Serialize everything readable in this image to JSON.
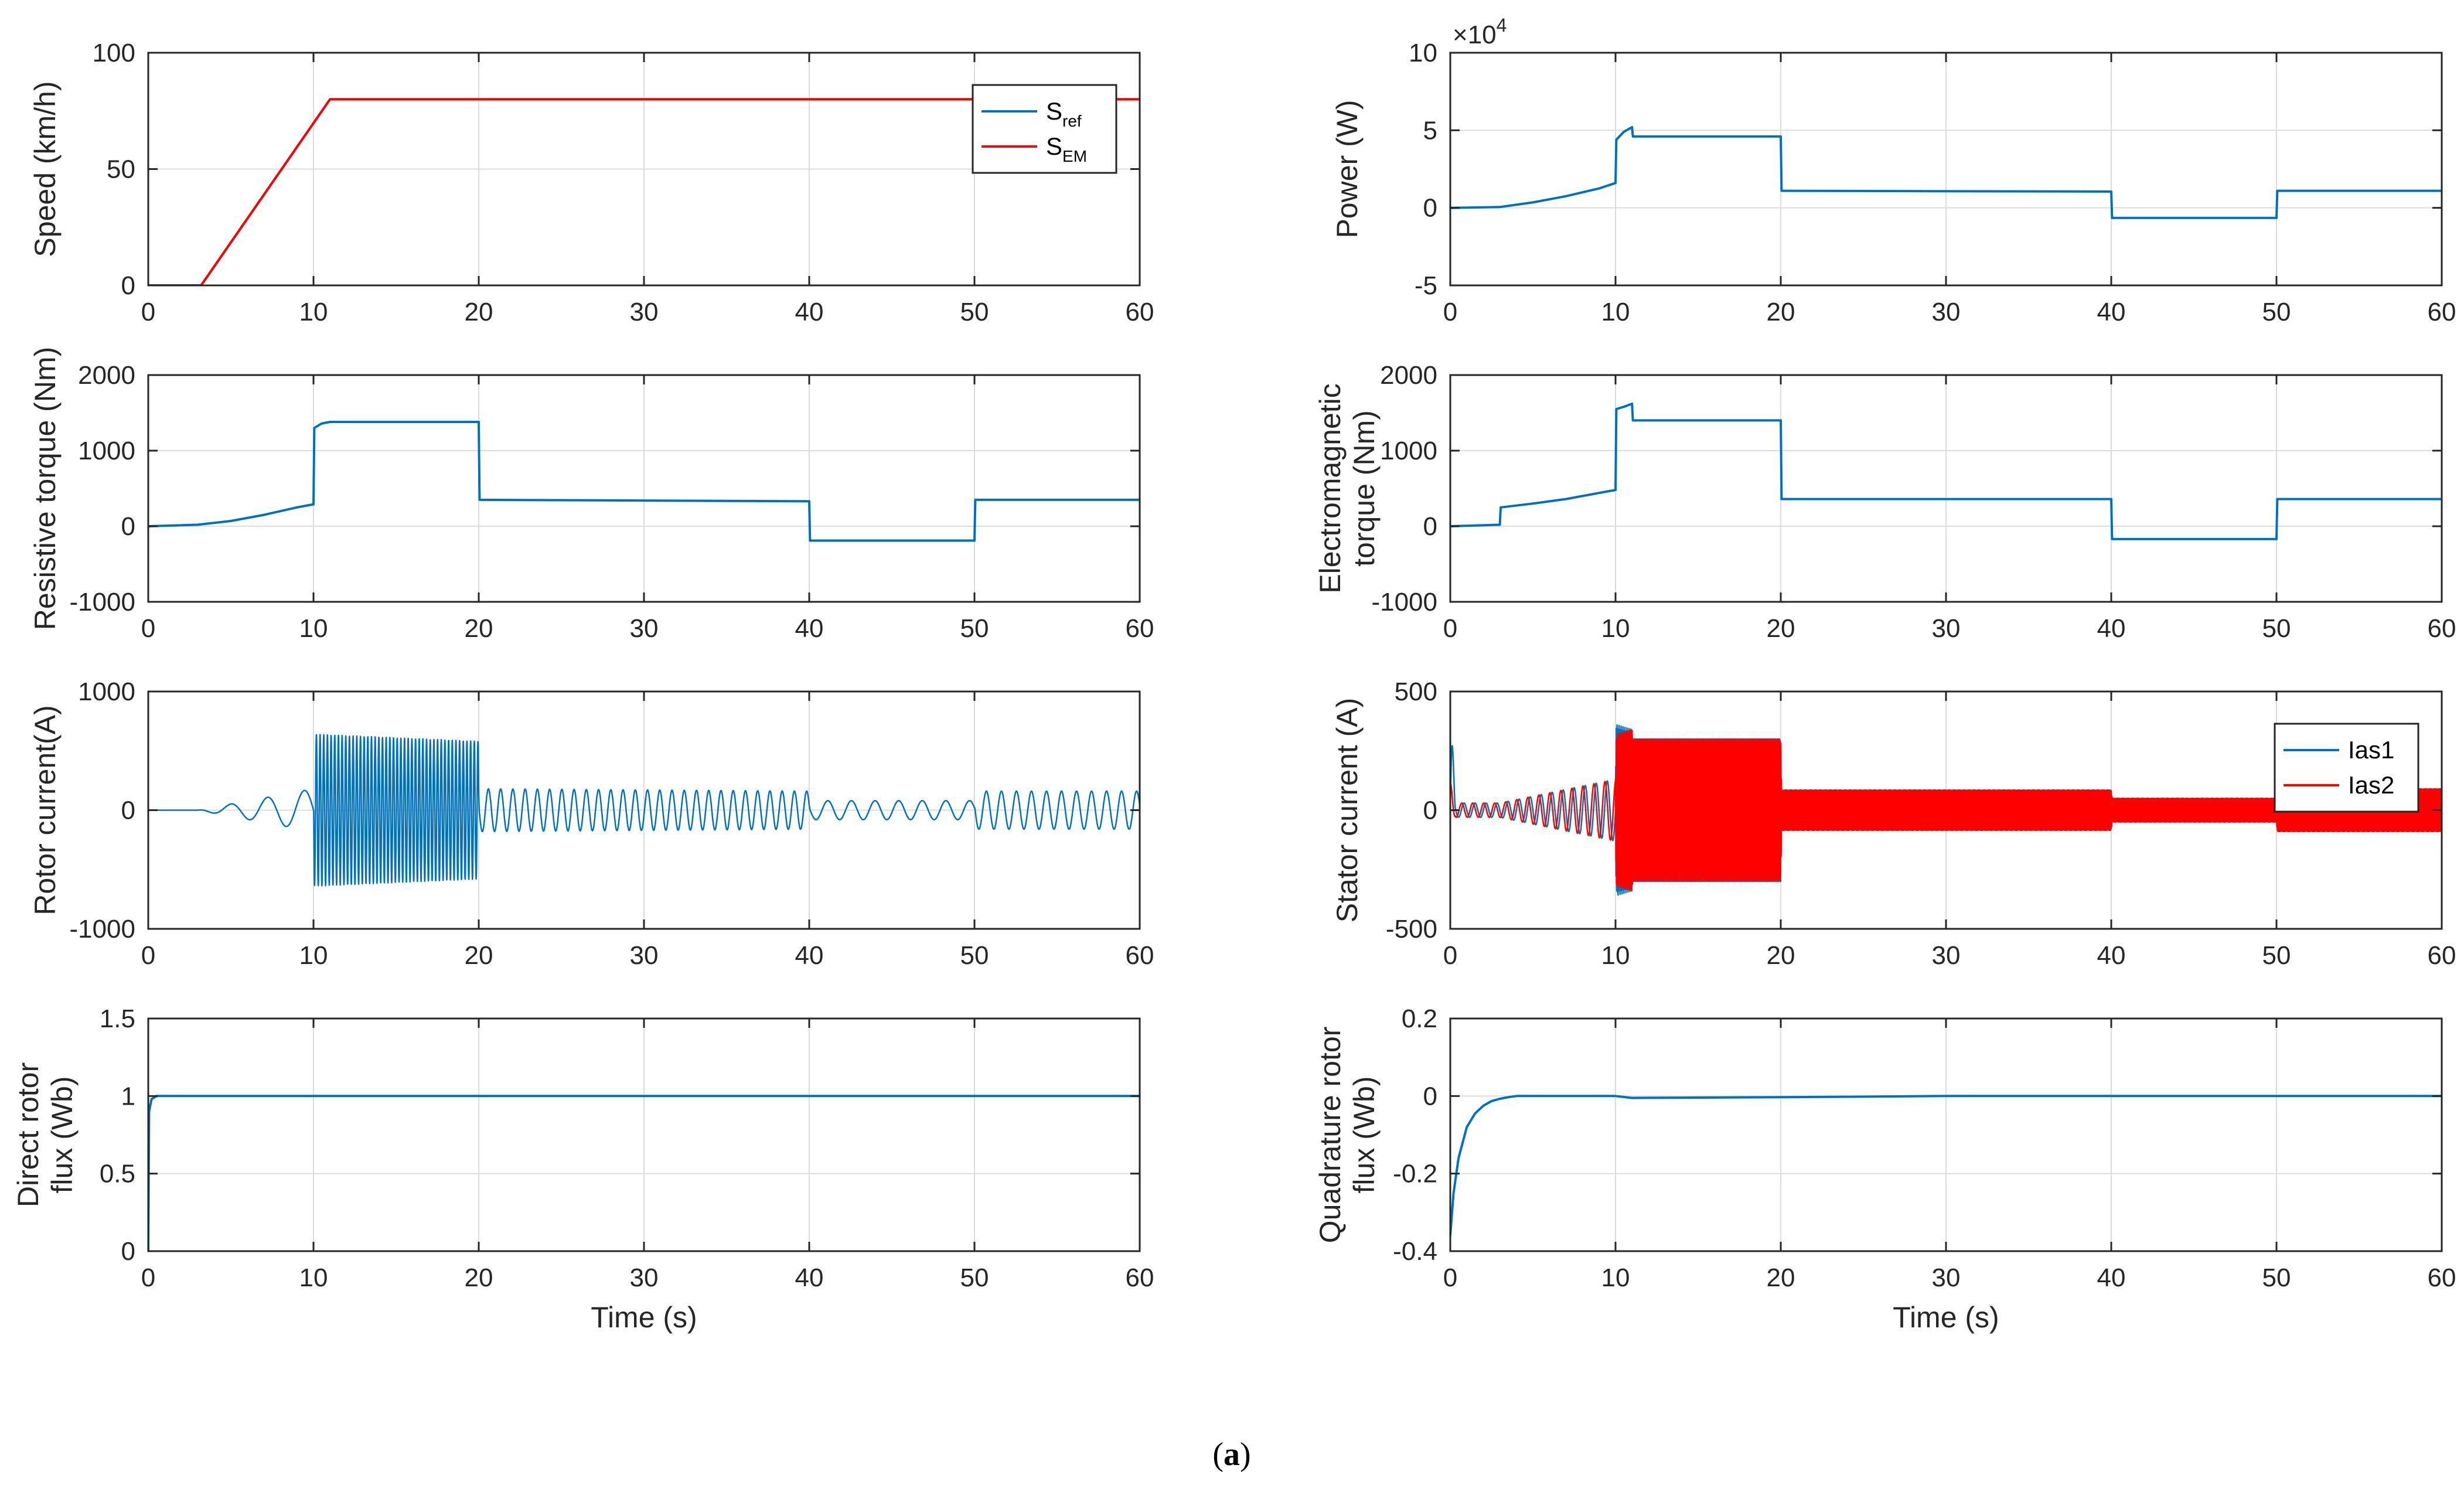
{
  "caption": {
    "open": "(",
    "letter": "a",
    "close": ")"
  },
  "colors": {
    "blue": "#0072bd",
    "red": "#ff0000",
    "grid": "#dcdcdc",
    "axis": "#262626"
  },
  "chart_data": [
    {
      "id": "speed",
      "type": "line",
      "ylabel": "Speed (km/h)",
      "xlabel": "",
      "xlim": [
        0,
        60
      ],
      "ylim": [
        0,
        100
      ],
      "xticks": [
        "0",
        "10",
        "20",
        "30",
        "40",
        "50",
        "60"
      ],
      "yticks": [
        "0",
        "50",
        "100"
      ],
      "grid": true,
      "legend": "top-right",
      "legend_entries": [
        {
          "main": "S",
          "sub": "ref",
          "color": "#0072bd"
        },
        {
          "main": "S",
          "sub": "EM",
          "color": "#ff0000"
        }
      ],
      "series": [
        {
          "name": "Sref",
          "color": "#0072bd",
          "x": [
            0,
            3.2,
            11,
            60
          ],
          "y": [
            0,
            0,
            80,
            80
          ]
        },
        {
          "name": "SEM",
          "color": "#ff0000",
          "x": [
            0,
            3.2,
            11,
            60
          ],
          "y": [
            0,
            0,
            80,
            80
          ]
        }
      ]
    },
    {
      "id": "power",
      "type": "line",
      "ylabel": "Power (W)",
      "xlabel": "",
      "exponent": "×10",
      "exponent_power": "4",
      "xlim": [
        0,
        60
      ],
      "ylim": [
        -5,
        10
      ],
      "xticks": [
        "0",
        "10",
        "20",
        "30",
        "40",
        "50",
        "60"
      ],
      "yticks": [
        "-5",
        "0",
        "5",
        "10"
      ],
      "grid": true,
      "series": [
        {
          "color": "#0072bd",
          "x": [
            0,
            3,
            5,
            7,
            9,
            10,
            10.05,
            10.5,
            11,
            11.05,
            20,
            20.05,
            40,
            40.05,
            50,
            50.05,
            60
          ],
          "y": [
            0,
            0.05,
            0.35,
            0.75,
            1.25,
            1.6,
            4.4,
            4.9,
            5.2,
            4.6,
            4.6,
            1.1,
            1.05,
            -0.65,
            -0.65,
            1.1,
            1.1
          ]
        }
      ]
    },
    {
      "id": "resistive",
      "type": "line",
      "ylabel": "Resistive torque (Nm)",
      "xlabel": "",
      "xlim": [
        0,
        60
      ],
      "ylim": [
        -1000,
        2000
      ],
      "xticks": [
        "0",
        "10",
        "20",
        "30",
        "40",
        "50",
        "60"
      ],
      "yticks": [
        "-1000",
        "0",
        "1000",
        "2000"
      ],
      "grid": true,
      "series": [
        {
          "color": "#0072bd",
          "x": [
            0,
            3,
            5,
            7,
            9,
            10,
            10.05,
            10.5,
            11,
            20,
            20.05,
            40,
            40.05,
            50,
            50.05,
            60
          ],
          "y": [
            0,
            20,
            70,
            150,
            250,
            290,
            1300,
            1360,
            1380,
            1380,
            350,
            330,
            -190,
            -190,
            350,
            350
          ]
        }
      ]
    },
    {
      "id": "em_torque",
      "type": "line",
      "ylabel": [
        "Electromagnetic",
        "torque (Nm)"
      ],
      "xlabel": "",
      "xlim": [
        0,
        60
      ],
      "ylim": [
        -1000,
        2000
      ],
      "xticks": [
        "0",
        "10",
        "20",
        "30",
        "40",
        "50",
        "60"
      ],
      "yticks": [
        "-1000",
        "0",
        "1000",
        "2000"
      ],
      "grid": true,
      "series": [
        {
          "color": "#0072bd",
          "x": [
            0,
            3,
            3.05,
            5,
            7,
            9,
            10,
            10.05,
            10.5,
            11,
            11.05,
            20,
            20.05,
            40,
            40.05,
            50,
            50.05,
            60
          ],
          "y": [
            0,
            20,
            250,
            300,
            360,
            440,
            480,
            1550,
            1580,
            1620,
            1400,
            1400,
            360,
            360,
            -170,
            -170,
            360,
            360
          ]
        }
      ]
    },
    {
      "id": "rotor_current",
      "type": "line",
      "ylabel": "Rotor current(A)",
      "xlabel": "",
      "xlim": [
        0,
        60
      ],
      "ylim": [
        -1000,
        1000
      ],
      "xticks": [
        "0",
        "10",
        "20",
        "30",
        "40",
        "50",
        "60"
      ],
      "yticks": [
        "-1000",
        "0",
        "1000"
      ],
      "grid": true,
      "series": [
        {
          "color": "#0072bd",
          "envelope": [
            [
              0,
              0
            ],
            [
              3,
              0
            ],
            [
              10,
              180
            ],
            [
              10.05,
              640
            ],
            [
              20,
              580
            ],
            [
              20.05,
              180
            ],
            [
              40,
              160
            ],
            [
              40.05,
              80
            ],
            [
              50,
              80
            ],
            [
              50.05,
              160
            ],
            [
              60,
              160
            ]
          ]
        }
      ]
    },
    {
      "id": "stator_current",
      "type": "line",
      "ylabel": "Stator current (A)",
      "xlabel": "",
      "xlim": [
        0,
        60
      ],
      "ylim": [
        -500,
        500
      ],
      "xticks": [
        "0",
        "10",
        "20",
        "30",
        "40",
        "50",
        "60"
      ],
      "yticks": [
        "-500",
        "0",
        "500"
      ],
      "grid": true,
      "legend": "top-right",
      "legend_entries": [
        {
          "main": "Ias1",
          "color": "#0072bd"
        },
        {
          "main": "Ias2",
          "color": "#ff0000"
        }
      ],
      "series": [
        {
          "name": "Ias1",
          "color": "#0072bd",
          "envelope": [
            [
              0,
              480
            ],
            [
              0.3,
              30
            ],
            [
              3,
              30
            ],
            [
              10,
              130
            ],
            [
              10.05,
              360
            ],
            [
              11,
              340
            ],
            [
              11.05,
              300
            ],
            [
              20,
              300
            ],
            [
              20.05,
              85
            ],
            [
              40,
              85
            ],
            [
              40.05,
              50
            ],
            [
              50,
              50
            ],
            [
              50.05,
              90
            ],
            [
              60,
              90
            ]
          ]
        },
        {
          "name": "Ias2",
          "color": "#ff0000",
          "envelope": [
            [
              0,
              120
            ],
            [
              0.3,
              30
            ],
            [
              3,
              30
            ],
            [
              10,
              130
            ],
            [
              10.05,
              320
            ],
            [
              11,
              340
            ],
            [
              11.05,
              300
            ],
            [
              20,
              300
            ],
            [
              20.05,
              85
            ],
            [
              40,
              85
            ],
            [
              40.05,
              50
            ],
            [
              50,
              50
            ],
            [
              50.05,
              90
            ],
            [
              60,
              90
            ]
          ]
        }
      ]
    },
    {
      "id": "direct_flux",
      "type": "line",
      "ylabel": [
        "Direct rotor",
        "flux (Wb)"
      ],
      "xlabel": "Time (s)",
      "xlim": [
        0,
        60
      ],
      "ylim": [
        0,
        1.5
      ],
      "xticks": [
        "0",
        "10",
        "20",
        "30",
        "40",
        "50",
        "60"
      ],
      "yticks": [
        "0",
        "0.5",
        "1",
        "1.5"
      ],
      "grid": true,
      "series": [
        {
          "color": "#0072bd",
          "x": [
            0,
            0.05,
            0.2,
            0.5,
            1,
            60
          ],
          "y": [
            0,
            0.9,
            0.98,
            1.0,
            1.0,
            1.0
          ]
        }
      ]
    },
    {
      "id": "quad_flux",
      "type": "line",
      "ylabel": [
        "Quadrature rotor",
        "flux (Wb)"
      ],
      "xlabel": "Time (s)",
      "xlim": [
        0,
        60
      ],
      "ylim": [
        -0.4,
        0.2
      ],
      "xticks": [
        "0",
        "10",
        "20",
        "30",
        "40",
        "50",
        "60"
      ],
      "yticks": [
        "-0.4",
        "-0.2",
        "0",
        "0.2"
      ],
      "grid": true,
      "series": [
        {
          "color": "#0072bd",
          "x": [
            0,
            0.2,
            0.5,
            1,
            1.5,
            2,
            2.5,
            3,
            3.5,
            4,
            5,
            10,
            11,
            20,
            30,
            40,
            60
          ],
          "y": [
            -0.36,
            -0.25,
            -0.16,
            -0.08,
            -0.045,
            -0.025,
            -0.013,
            -0.007,
            -0.003,
            0,
            0,
            0,
            -0.005,
            -0.003,
            0,
            0,
            0
          ]
        }
      ]
    }
  ]
}
